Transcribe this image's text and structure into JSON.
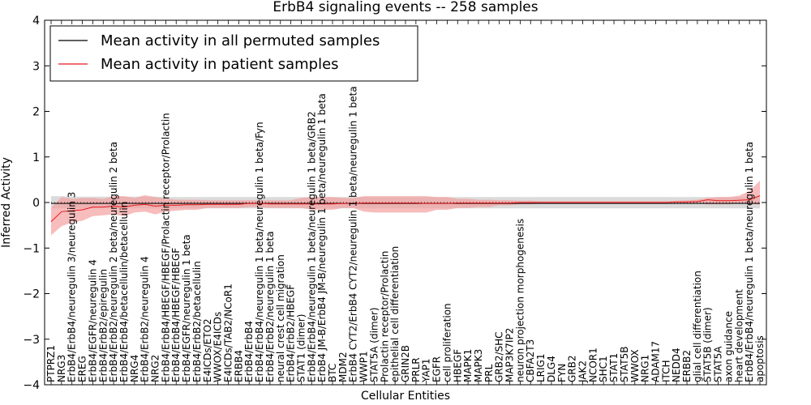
{
  "chart_data": {
    "type": "line",
    "title": "ErbB4 signaling events -- 258 samples",
    "xlabel": "Cellular Entities",
    "ylabel": "Inferred Activity",
    "ylim": [
      -4,
      4
    ],
    "yticks": [
      "−4",
      "−3",
      "−2",
      "−1",
      "0",
      "1",
      "2",
      "3",
      "4"
    ],
    "legend": {
      "position": "top-left",
      "entries": [
        {
          "label": "Mean activity in all permuted samples",
          "color": "#000000"
        },
        {
          "label": "Mean activity in patient samples",
          "color": "#e8191c"
        }
      ]
    },
    "colors": {
      "patient_line": "#e8191c",
      "patient_band": "#f4a0a0",
      "permuted_line": "#000000",
      "permuted_band": "#cfcfcf"
    },
    "categories": [
      "PTPRZ1",
      "NRG3",
      "ErbB4/ErbB4/neuregulin 3/neuregulin 3",
      "EREG",
      "ErbB4/EGFR/neuregulin 4",
      "ErbB4/ErbB2/epiregulin",
      "ErbB4/ErbB2/neuregulin 2 beta/neuregulin 2 beta",
      "ErbB4/ErbB4/betacellulin/betacellulin",
      "NRG4",
      "ErbB4/ErbB2/neuregulin 4",
      "NRG2",
      "ErbB4/ErbB4/HBEGF/HBEGF/Prolactin receptor/Prolactin",
      "ErbB4/ErbB4/HBEGF/HBEGF",
      "ErbB4/EGFR/neuregulin 1 beta",
      "ErbB4/ErbB2/betacellulin",
      "E4ICDs/ETO2",
      "WWOX/E4ICDs",
      "E4ICDs/TAB2/NCoR1",
      "ERBB4",
      "ErbB4/ErbB4",
      "ErbB4/ErbB4/neuregulin 1 beta/neuregulin 1 beta/Fyn",
      "ErbB4/ErbB2/neuregulin 1 beta",
      "neural crest cell migration",
      "ErbB4/ErbB2/HBEGF",
      "STAT1 (dimer)",
      "ErbB4/ErbB4/neuregulin 1 beta/neuregulin 1 beta/GRB2",
      "ErbB4 JM-B/ErbB4 JM-B/neuregulin 1 beta/neuregulin 1 beta",
      "BTC",
      "MDM2",
      "ErbB4 CYT2/ErbB4 CYT2/neuregulin 1 beta/neuregulin 1 beta",
      "WWP1",
      "STAT5A (dimer)",
      "Prolactin receptor/Prolactin",
      "epithelial cell differentiation",
      "GRIN2B",
      "PRLR",
      "YAP1",
      "EGFR",
      "cell proliferation",
      "HBEGF",
      "MAPK1",
      "MAPK3",
      "PRL",
      "GRB2/SHC",
      "MAP3K7IP2",
      "neuron projection morphogenesis",
      "CBFA2T3",
      "LRIG1",
      "DLG4",
      "FYN",
      "GRB2",
      "JAK2",
      "NCOR1",
      "SHC1",
      "STAT1",
      "STAT5B",
      "WWOX",
      "NRG1",
      "ADAM17",
      "ITCH",
      "NEDD4",
      "ERBB2",
      "glial cell differentiation",
      "STAT5B (dimer)",
      "STAT5A",
      "axon guidance",
      "heart development",
      "ErbB4/ErbB4/neuregulin 1 beta/neuregulin 1 beta",
      "apoptosis"
    ],
    "series": [
      {
        "name": "Mean activity in all permuted samples",
        "values": [
          -0.02,
          -0.02,
          -0.02,
          -0.02,
          -0.02,
          -0.02,
          -0.02,
          -0.02,
          -0.02,
          -0.02,
          -0.02,
          -0.02,
          -0.02,
          -0.02,
          -0.02,
          -0.02,
          -0.02,
          -0.02,
          -0.02,
          -0.02,
          -0.02,
          -0.02,
          -0.02,
          -0.02,
          -0.02,
          -0.02,
          -0.02,
          -0.02,
          -0.02,
          -0.02,
          -0.02,
          -0.02,
          -0.02,
          -0.02,
          -0.02,
          -0.02,
          -0.02,
          -0.02,
          -0.02,
          -0.02,
          -0.02,
          -0.02,
          -0.02,
          -0.02,
          -0.02,
          -0.02,
          -0.02,
          -0.02,
          -0.02,
          -0.02,
          -0.02,
          -0.02,
          -0.02,
          -0.02,
          -0.02,
          -0.02,
          -0.02,
          -0.02,
          -0.02,
          -0.02,
          -0.02,
          -0.02,
          -0.02,
          -0.02,
          -0.02,
          -0.02,
          -0.02,
          -0.02,
          -0.02
        ],
        "lower": [
          -0.13,
          -0.13,
          -0.13,
          -0.13,
          -0.13,
          -0.13,
          -0.13,
          -0.13,
          -0.13,
          -0.13,
          -0.13,
          -0.13,
          -0.13,
          -0.13,
          -0.13,
          -0.13,
          -0.13,
          -0.13,
          -0.13,
          -0.13,
          -0.13,
          -0.13,
          -0.13,
          -0.13,
          -0.13,
          -0.13,
          -0.13,
          -0.13,
          -0.13,
          -0.13,
          -0.13,
          -0.13,
          -0.13,
          -0.13,
          -0.13,
          -0.13,
          -0.13,
          -0.13,
          -0.13,
          -0.13,
          -0.13,
          -0.13,
          -0.13,
          -0.13,
          -0.13,
          -0.13,
          -0.13,
          -0.13,
          -0.13,
          -0.13,
          -0.13,
          -0.13,
          -0.13,
          -0.13,
          -0.13,
          -0.13,
          -0.13,
          -0.13,
          -0.13,
          -0.13,
          -0.13,
          -0.13,
          -0.13,
          -0.13,
          -0.13,
          -0.13,
          -0.13,
          -0.13,
          -0.13
        ],
        "upper": [
          0.14,
          0.14,
          0.13,
          0.13,
          0.13,
          0.13,
          0.13,
          0.13,
          0.13,
          0.13,
          0.13,
          0.12,
          0.12,
          0.12,
          0.12,
          0.12,
          0.12,
          0.12,
          0.12,
          0.12,
          0.12,
          0.12,
          0.12,
          0.12,
          0.12,
          0.12,
          0.12,
          0.12,
          0.12,
          0.12,
          0.12,
          0.12,
          0.12,
          0.12,
          0.12,
          0.12,
          0.12,
          0.12,
          0.12,
          0.12,
          0.12,
          0.12,
          0.12,
          0.12,
          0.12,
          0.12,
          0.12,
          0.12,
          0.12,
          0.12,
          0.12,
          0.12,
          0.12,
          0.12,
          0.12,
          0.12,
          0.12,
          0.12,
          0.12,
          0.12,
          0.12,
          0.12,
          0.12,
          0.12,
          0.12,
          0.12,
          0.12,
          0.12,
          0.12
        ]
      },
      {
        "name": "Mean activity in patient samples",
        "values": [
          -0.42,
          -0.2,
          -0.18,
          -0.16,
          -0.1,
          -0.1,
          -0.08,
          -0.1,
          -0.06,
          -0.04,
          -0.08,
          -0.06,
          -0.06,
          -0.05,
          -0.05,
          -0.04,
          -0.04,
          -0.04,
          -0.04,
          -0.02,
          -0.02,
          -0.03,
          -0.03,
          -0.03,
          -0.03,
          -0.03,
          -0.03,
          -0.03,
          -0.02,
          -0.02,
          -0.01,
          -0.01,
          -0.01,
          -0.01,
          -0.01,
          -0.01,
          -0.02,
          -0.02,
          -0.02,
          -0.01,
          -0.01,
          -0.01,
          -0.01,
          -0.01,
          -0.01,
          0.0,
          0.0,
          0.0,
          0.0,
          0.0,
          0.0,
          0.0,
          0.0,
          0.0,
          0.0,
          0.0,
          0.0,
          0.0,
          0.0,
          0.0,
          0.01,
          0.01,
          0.02,
          0.06,
          0.04,
          0.04,
          0.05,
          0.06,
          0.15
        ],
        "lower": [
          -0.72,
          -0.52,
          -0.44,
          -0.4,
          -0.3,
          -0.28,
          -0.26,
          -0.3,
          -0.22,
          -0.2,
          -0.26,
          -0.2,
          -0.18,
          -0.16,
          -0.16,
          -0.12,
          -0.12,
          -0.12,
          -0.12,
          -0.1,
          -0.1,
          -0.12,
          -0.12,
          -0.12,
          -0.12,
          -0.16,
          -0.16,
          -0.16,
          -0.12,
          -0.12,
          -0.2,
          -0.22,
          -0.22,
          -0.22,
          -0.22,
          -0.22,
          -0.22,
          -0.16,
          -0.16,
          -0.12,
          -0.12,
          -0.1,
          -0.1,
          -0.06,
          -0.06,
          -0.04,
          -0.04,
          -0.02,
          -0.02,
          -0.02,
          -0.02,
          -0.02,
          -0.02,
          -0.02,
          -0.02,
          -0.02,
          -0.02,
          -0.02,
          -0.02,
          -0.02,
          -0.02,
          -0.02,
          -0.02,
          -0.04,
          -0.04,
          -0.04,
          -0.02,
          -0.02,
          -0.05
        ],
        "upper": [
          -0.12,
          0.12,
          0.08,
          0.1,
          0.1,
          0.08,
          0.14,
          0.14,
          0.1,
          0.16,
          0.12,
          0.08,
          0.06,
          0.06,
          0.06,
          0.05,
          0.05,
          0.05,
          0.05,
          0.05,
          0.05,
          0.05,
          0.05,
          0.05,
          0.1,
          0.12,
          0.12,
          0.12,
          0.1,
          0.1,
          0.14,
          0.14,
          0.14,
          0.14,
          0.14,
          0.14,
          0.14,
          0.12,
          0.12,
          0.08,
          0.08,
          0.06,
          0.06,
          0.05,
          0.05,
          0.04,
          0.04,
          0.03,
          0.03,
          0.03,
          0.03,
          0.03,
          0.03,
          0.03,
          0.03,
          0.03,
          0.03,
          0.03,
          0.03,
          0.03,
          0.04,
          0.05,
          0.06,
          0.1,
          0.12,
          0.12,
          0.15,
          0.25,
          0.48
        ]
      }
    ]
  }
}
